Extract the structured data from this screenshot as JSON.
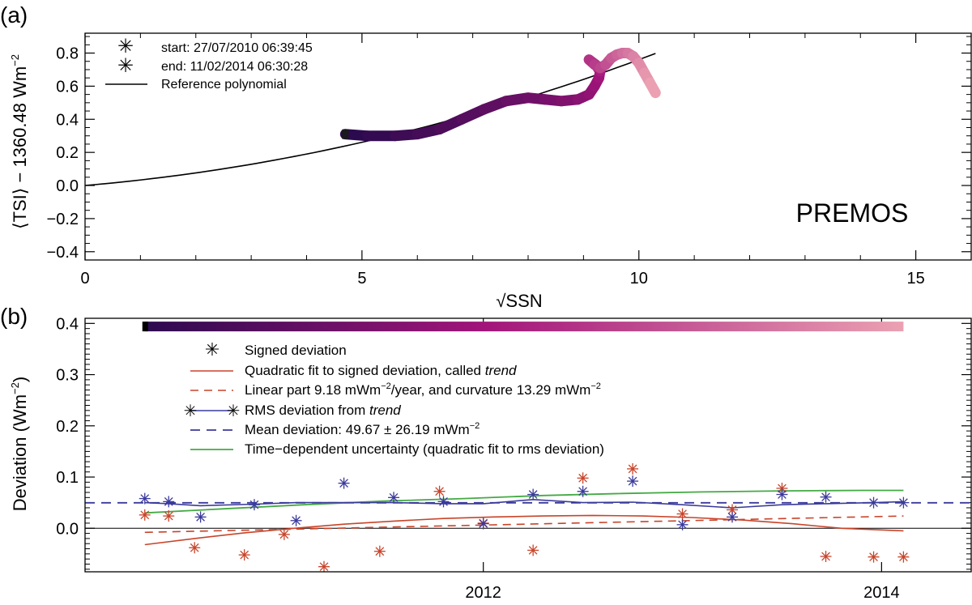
{
  "figure": {
    "panel_a_label": "(a)",
    "panel_b_label": "(b)"
  },
  "chart_data": [
    {
      "type": "scatter",
      "panel": "a",
      "xlabel": "√SSN",
      "ylabel_main": "⟨TSI⟩ − 1360.48 Wm",
      "ylabel_sup": "−2",
      "xlim": [
        0,
        16
      ],
      "ylim": [
        -0.45,
        0.92
      ],
      "xticks": [
        0,
        5,
        10,
        15
      ],
      "yticks": [
        -0.4,
        -0.2,
        0.0,
        0.2,
        0.4,
        0.6,
        0.8
      ],
      "ytick_labels": [
        "−0.4",
        "−0.2",
        "0.0",
        "0.2",
        "0.4",
        "0.6",
        "0.8"
      ],
      "annotation": "PREMOS",
      "legend": {
        "start_label": "start: 27/07/2010 06:39:45",
        "end_label": "end:  11/02/2014 06:30:28",
        "reference_label": "Reference polynomial",
        "start_color": "#1a1a1a",
        "end_color": "#eba1b2"
      },
      "reference_polynomial": {
        "coefficients": [
          0.0,
          0.0285,
          0.00475
        ],
        "x_range": [
          0,
          10.3
        ]
      },
      "track": {
        "x": [
          4.7,
          5.1,
          5.6,
          6.0,
          6.4,
          6.8,
          7.2,
          7.6,
          8.0,
          8.3,
          8.6,
          8.9,
          9.1,
          9.2,
          9.28,
          9.3,
          9.22,
          9.1,
          9.2,
          9.3,
          9.4,
          9.5,
          9.6,
          9.7,
          9.8,
          9.9,
          10.0,
          10.1,
          10.2,
          10.3
        ],
        "y": [
          0.31,
          0.3,
          0.3,
          0.31,
          0.34,
          0.4,
          0.46,
          0.51,
          0.53,
          0.52,
          0.51,
          0.52,
          0.55,
          0.6,
          0.65,
          0.69,
          0.73,
          0.76,
          0.73,
          0.71,
          0.73,
          0.77,
          0.79,
          0.8,
          0.8,
          0.78,
          0.74,
          0.68,
          0.62,
          0.56
        ],
        "color_start": "#2c0a4f",
        "color_mid": "#a2157a",
        "color_end": "#eba1b2"
      }
    },
    {
      "type": "line",
      "panel": "b",
      "ylabel_main": "Deviation (Wm",
      "ylabel_sup": "−2",
      "ylabel_end": ")",
      "xlim": [
        2010.0,
        2014.45
      ],
      "ylim": [
        -0.085,
        0.41
      ],
      "xticks": [
        2012,
        2014
      ],
      "xtick_labels": [
        "2012",
        "2014"
      ],
      "yticks": [
        0.0,
        0.1,
        0.2,
        0.3,
        0.4
      ],
      "ytick_labels": [
        "0.0",
        "0.1",
        "0.2",
        "0.3",
        "0.4"
      ],
      "time_colorbar": {
        "x_range": [
          2010.3,
          2014.11
        ],
        "y": 0.394
      },
      "signed_deviation": {
        "label": "Signed deviation",
        "color": "#c8442a",
        "x": [
          2010.3,
          2010.42,
          2010.55,
          2010.8,
          2011.0,
          2011.2,
          2011.48,
          2011.78,
          2012.0,
          2012.25,
          2012.5,
          2012.75,
          2013.0,
          2013.25,
          2013.5,
          2013.72,
          2013.96,
          2014.11
        ],
        "y": [
          0.026,
          0.024,
          -0.038,
          -0.052,
          -0.012,
          -0.075,
          -0.045,
          0.072,
          0.01,
          -0.043,
          0.098,
          0.116,
          0.028,
          0.036,
          0.078,
          -0.055,
          -0.056,
          -0.056
        ]
      },
      "trend": {
        "label": "Quadratic fit to signed deviation, called ",
        "label_italic": "trend",
        "color": "#c8442a",
        "x": [
          2010.3,
          2010.55,
          2010.8,
          2011.05,
          2011.3,
          2011.55,
          2011.8,
          2012.05,
          2012.3,
          2012.55,
          2012.8,
          2013.05,
          2013.3,
          2013.55,
          2013.8,
          2014.11
        ],
        "y": [
          -0.032,
          -0.02,
          -0.009,
          0.0,
          0.008,
          0.014,
          0.019,
          0.022,
          0.024,
          0.025,
          0.024,
          0.021,
          0.016,
          0.009,
          0.0,
          -0.005
        ]
      },
      "linear_part": {
        "label": "Linear part  9.18 mWm",
        "label_sup1": "−2",
        "label_mid": "/year, and curvature 13.29 mWm",
        "label_sup2": "−2",
        "color": "#c8442a",
        "x": [
          2010.3,
          2014.11
        ],
        "y": [
          -0.008,
          0.024
        ]
      },
      "rms_deviation": {
        "label": "RMS deviation from ",
        "label_italic": "trend",
        "color": "#3a3a9c",
        "x": [
          2010.3,
          2010.42,
          2010.58,
          2010.85,
          2011.06,
          2011.3,
          2011.55,
          2011.8,
          2012.0,
          2012.25,
          2012.5,
          2012.75,
          2013.0,
          2013.25,
          2013.5,
          2013.72,
          2013.96,
          2014.11
        ],
        "y": [
          0.058,
          0.052,
          0.022,
          0.046,
          0.015,
          0.088,
          0.06,
          0.052,
          0.009,
          0.066,
          0.072,
          0.092,
          0.007,
          0.022,
          0.066,
          0.061,
          0.05,
          0.05
        ],
        "line_y": [
          0.05,
          0.048,
          0.044,
          0.047,
          0.05,
          0.05,
          0.05,
          0.048,
          0.048,
          0.056,
          0.05,
          0.051,
          0.046,
          0.04,
          0.046,
          0.048,
          0.05,
          0.052
        ]
      },
      "mean_deviation": {
        "label": "Mean deviation: 49.67 ±  26.19 mWm",
        "label_sup": "−2",
        "color": "#3a3a9c",
        "y": 0.0497
      },
      "uncertainty": {
        "label": "Time−dependent uncertainty (quadratic fit to rms deviation)",
        "color": "#44aa44",
        "x": [
          2010.3,
          2010.7,
          2011.1,
          2011.5,
          2011.9,
          2012.3,
          2012.7,
          2013.1,
          2013.5,
          2013.9,
          2014.11
        ],
        "y": [
          0.03,
          0.038,
          0.046,
          0.053,
          0.058,
          0.064,
          0.068,
          0.071,
          0.073,
          0.074,
          0.074
        ]
      }
    }
  ]
}
